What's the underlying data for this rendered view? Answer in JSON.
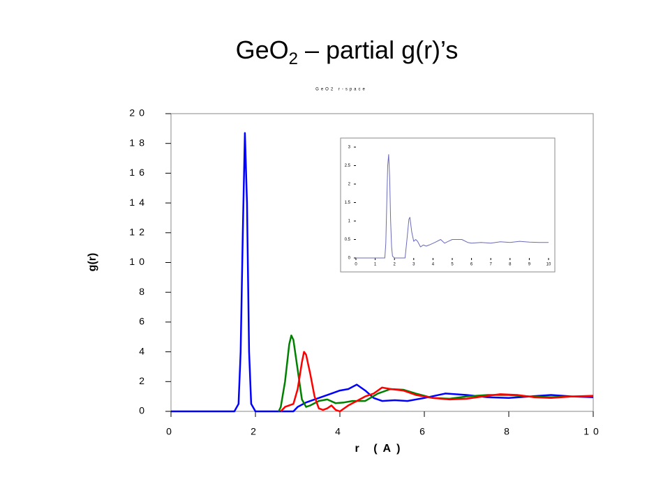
{
  "slide_title": [
    "GeO",
    "2",
    " – partial g(r)’s"
  ],
  "chart_data": [
    {
      "type": "line",
      "subtitle": "GeO2 r-space",
      "xlabel": "r (A)",
      "ylabel": "g(r)",
      "xlim": [
        0,
        10
      ],
      "ylim": [
        0,
        20
      ],
      "xticks": [
        0,
        2,
        4,
        6,
        8,
        10
      ],
      "yticks": [
        0,
        2,
        4,
        6,
        8,
        10,
        12,
        14,
        16,
        18,
        20
      ],
      "series": [
        {
          "color": "#0000ff",
          "x": [
            0,
            1.5,
            1.6,
            1.65,
            1.7,
            1.75,
            1.8,
            1.85,
            1.9,
            2.0,
            2.9,
            3.0,
            3.2,
            3.5,
            3.8,
            4.0,
            4.2,
            4.4,
            4.6,
            4.8,
            5.0,
            5.3,
            5.6,
            6.0,
            6.5,
            7.0,
            7.5,
            8.0,
            8.5,
            9.0,
            9.5,
            10
          ],
          "values": [
            0,
            0,
            0.5,
            4,
            12,
            18.7,
            14,
            4,
            0.5,
            0,
            0,
            0.3,
            0.6,
            0.9,
            1.2,
            1.4,
            1.5,
            1.8,
            1.4,
            0.9,
            0.7,
            0.75,
            0.7,
            0.9,
            1.2,
            1.1,
            0.95,
            0.9,
            1.0,
            1.1,
            1.0,
            0.95
          ]
        },
        {
          "color": "#008000",
          "x": [
            2.55,
            2.6,
            2.7,
            2.8,
            2.85,
            2.9,
            3.0,
            3.1,
            3.2,
            3.3,
            3.5,
            3.7,
            3.9,
            4.1,
            4.3,
            4.6,
            4.9,
            5.2,
            5.5,
            5.8,
            6.2,
            6.6,
            7.0,
            7.5,
            8.0,
            8.5,
            9.0,
            9.5,
            10
          ],
          "values": [
            0,
            0.3,
            2.0,
            4.5,
            5.1,
            4.8,
            2.8,
            0.8,
            0.3,
            0.4,
            0.7,
            0.8,
            0.55,
            0.6,
            0.7,
            0.7,
            1.2,
            1.5,
            1.45,
            1.2,
            0.9,
            0.85,
            1.0,
            1.1,
            1.1,
            1.0,
            0.95,
            1.0,
            1.0
          ]
        },
        {
          "color": "#ff0000",
          "x": [
            2.6,
            2.7,
            2.9,
            3.0,
            3.1,
            3.15,
            3.2,
            3.3,
            3.4,
            3.5,
            3.6,
            3.7,
            3.8,
            3.9,
            4.0,
            4.2,
            4.4,
            4.6,
            4.8,
            5.0,
            5.2,
            5.5,
            5.8,
            6.2,
            6.6,
            7.0,
            7.5,
            7.8,
            8.2,
            8.6,
            9.0,
            9.5,
            10
          ],
          "values": [
            0,
            0.3,
            0.5,
            1.5,
            3.3,
            4.0,
            3.8,
            2.5,
            1.0,
            0.2,
            0.1,
            0.2,
            0.4,
            0.1,
            0.0,
            0.4,
            0.7,
            1.0,
            1.2,
            1.6,
            1.5,
            1.4,
            1.1,
            0.9,
            0.8,
            0.85,
            1.05,
            1.15,
            1.1,
            0.95,
            0.9,
            1.0,
            1.05
          ]
        }
      ]
    },
    {
      "type": "line",
      "xlim": [
        0,
        10
      ],
      "ylim": [
        0,
        3
      ],
      "xticks": [
        0,
        1,
        2,
        3,
        4,
        5,
        6,
        7,
        8,
        9,
        10
      ],
      "yticks": [
        0,
        0.5,
        1,
        1.5,
        2,
        2.5,
        3
      ],
      "series": [
        {
          "color": "#6a6ab8",
          "x": [
            0,
            1.5,
            1.55,
            1.6,
            1.65,
            1.7,
            1.75,
            1.8,
            1.85,
            1.9,
            2.0,
            2.55,
            2.65,
            2.75,
            2.8,
            2.9,
            3.0,
            3.1,
            3.2,
            3.35,
            3.5,
            3.65,
            3.8,
            4.1,
            4.4,
            4.6,
            4.8,
            5.0,
            5.5,
            5.8,
            6.0,
            6.5,
            7.0,
            7.5,
            8.0,
            8.5,
            9.0,
            9.5,
            10
          ],
          "values": [
            0,
            0,
            0.4,
            1.5,
            2.5,
            2.8,
            2.2,
            1.0,
            0.3,
            0.05,
            0,
            0,
            0.5,
            1.05,
            1.1,
            0.7,
            0.45,
            0.5,
            0.45,
            0.3,
            0.35,
            0.32,
            0.35,
            0.42,
            0.5,
            0.4,
            0.45,
            0.5,
            0.5,
            0.42,
            0.4,
            0.42,
            0.4,
            0.44,
            0.42,
            0.45,
            0.43,
            0.42,
            0.42
          ]
        }
      ]
    }
  ]
}
